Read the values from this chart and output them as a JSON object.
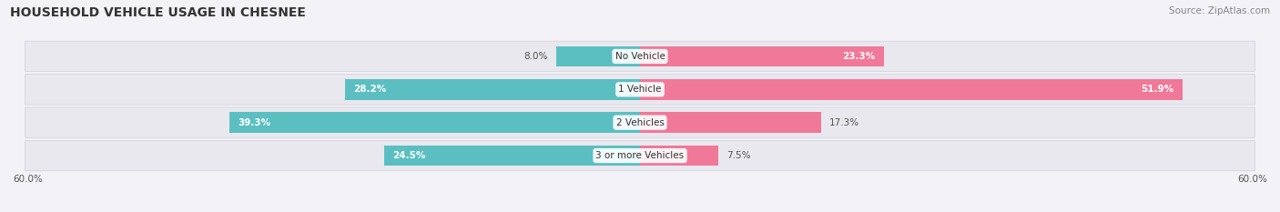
{
  "title": "HOUSEHOLD VEHICLE USAGE IN CHESNEE",
  "source": "Source: ZipAtlas.com",
  "categories": [
    "No Vehicle",
    "1 Vehicle",
    "2 Vehicles",
    "3 or more Vehicles"
  ],
  "owner_values": [
    8.0,
    28.2,
    39.3,
    24.5
  ],
  "renter_values": [
    23.3,
    51.9,
    17.3,
    7.5
  ],
  "owner_color": "#5bbfc2",
  "renter_color": "#f07898",
  "axis_max": 60.0,
  "axis_label_left": "60.0%",
  "axis_label_right": "60.0%",
  "background_color": "#f2f2f7",
  "row_bg_color": "#e8e8ee",
  "title_fontsize": 10,
  "source_fontsize": 7.5
}
